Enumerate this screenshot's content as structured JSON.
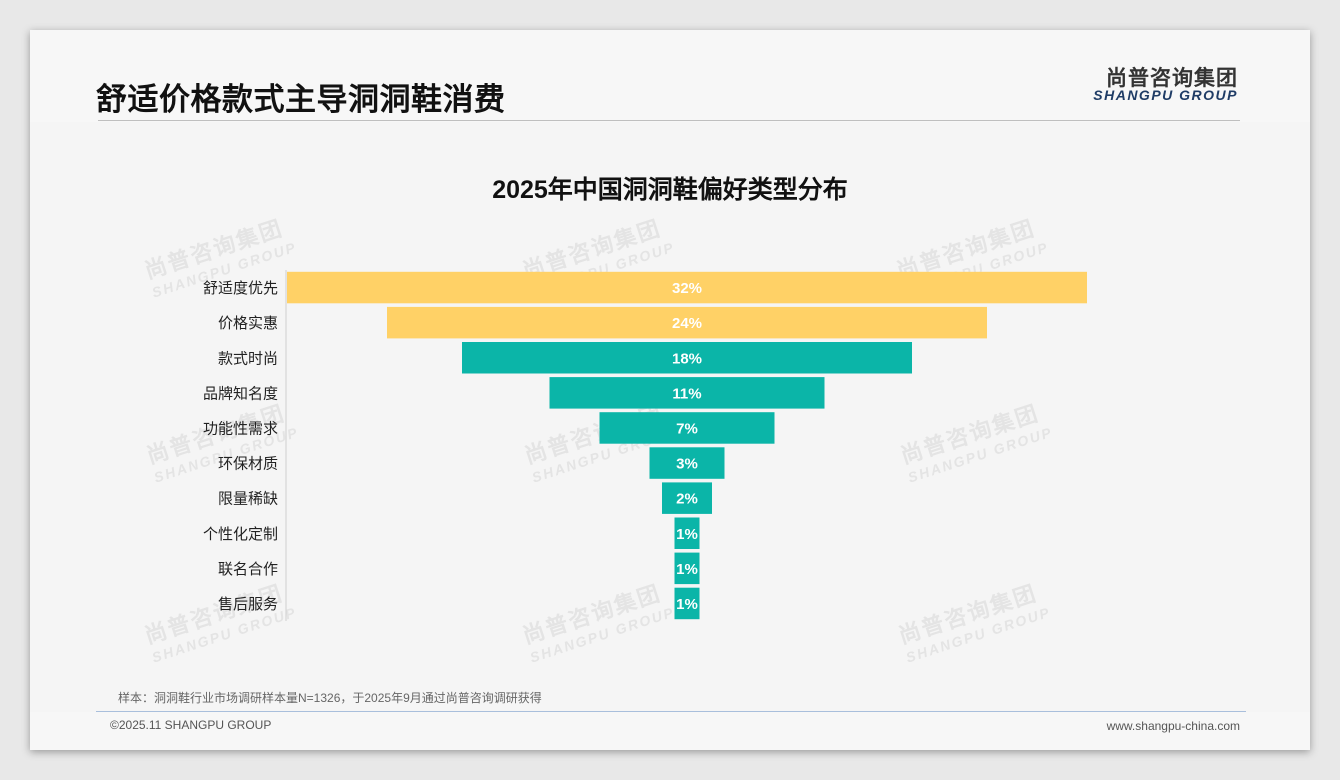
{
  "header": {
    "title": "舒适价格款式主导洞洞鞋消费",
    "logo_cn": "尚普咨询集团",
    "logo_en": "SHANGPU GROUP"
  },
  "watermark": {
    "cn": "尚普咨询集团",
    "en": "SHANGPU GROUP"
  },
  "chart_data": {
    "type": "bar",
    "orientation": "horizontal-centered-funnel",
    "title": "2025年中国洞洞鞋偏好类型分布",
    "categories": [
      "舒适度优先",
      "价格实惠",
      "款式时尚",
      "品牌知名度",
      "功能性需求",
      "环保材质",
      "限量稀缺",
      "个性化定制",
      "联名合作",
      "售后服务"
    ],
    "values": [
      32,
      24,
      18,
      11,
      7,
      3,
      2,
      1,
      1,
      1
    ],
    "value_labels": [
      "32%",
      "24%",
      "18%",
      "11%",
      "7%",
      "3%",
      "2%",
      "1%",
      "1%",
      "1%"
    ],
    "unit": "%",
    "highlight_count": 2,
    "colors": {
      "highlight": "#ffd166",
      "default": "#0bb5a8"
    },
    "xlim": [
      0,
      32
    ],
    "grid": false,
    "legend": "none"
  },
  "footer": {
    "note": "样本：洞洞鞋行业市场调研样本量N=1326，于2025年9月通过尚普咨询调研获得",
    "copyright": "©2025.11 SHANGPU GROUP",
    "website": "www.shangpu-china.com"
  }
}
